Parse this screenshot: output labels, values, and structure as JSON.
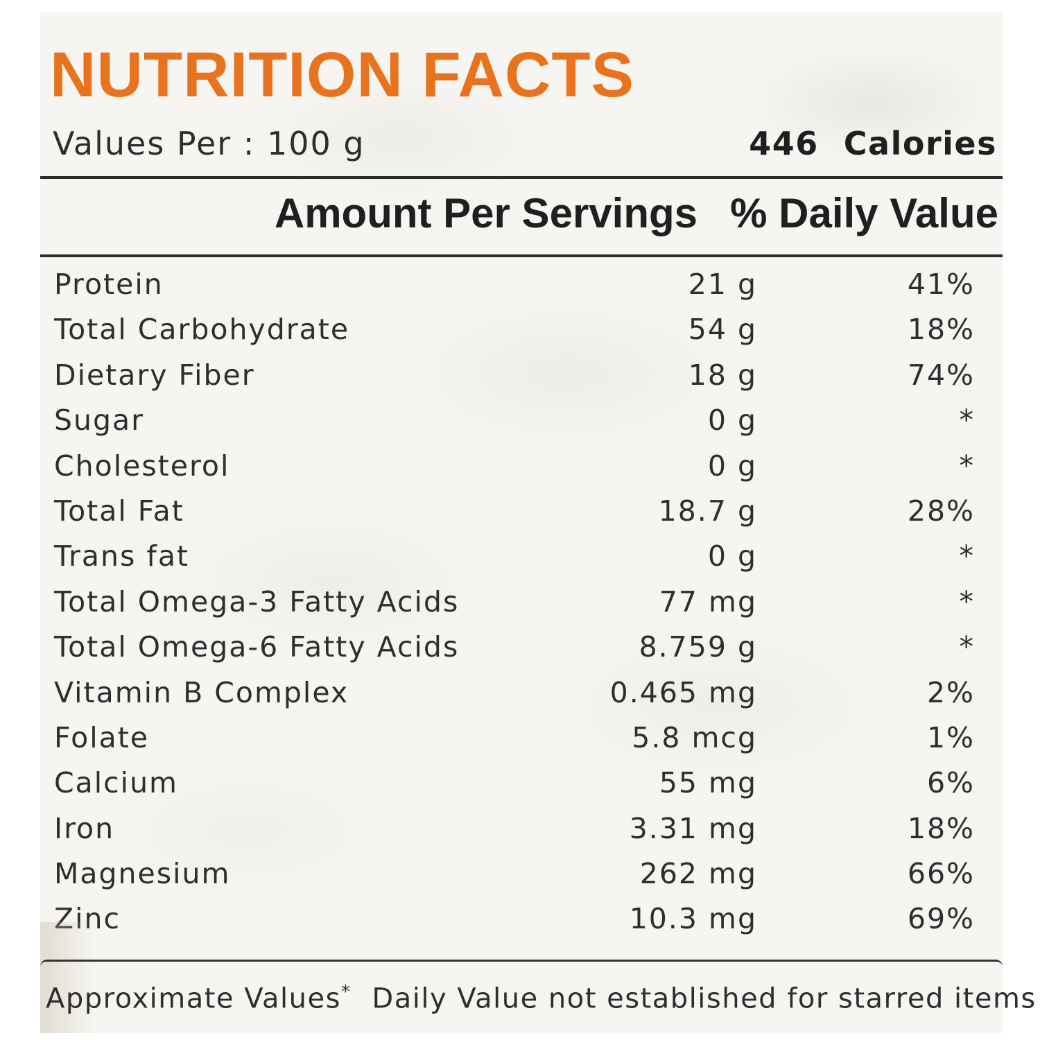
{
  "title": "NUTRITION FACTS",
  "serving": "Values Per : 100 g",
  "calories": {
    "value": "446",
    "label": "Calories"
  },
  "columns": {
    "amount": "Amount Per Servings",
    "daily_value": "% Daily Value"
  },
  "nutrients": [
    {
      "name": "Protein",
      "amount": "21 g",
      "dv": "41%"
    },
    {
      "name": "Total Carbohydrate",
      "amount": "54 g",
      "dv": "18%"
    },
    {
      "name": "Dietary Fiber",
      "amount": "18 g",
      "dv": "74%"
    },
    {
      "name": "Sugar",
      "amount": "0 g",
      "dv": "*"
    },
    {
      "name": "Cholesterol",
      "amount": "0 g",
      "dv": "*"
    },
    {
      "name": "Total Fat",
      "amount": "18.7 g",
      "dv": "28%"
    },
    {
      "name": "Trans fat",
      "amount": "0 g",
      "dv": "*"
    },
    {
      "name": "Total Omega-3 Fatty Acids",
      "amount": "77 mg",
      "dv": "*"
    },
    {
      "name": "Total Omega-6 Fatty Acids",
      "amount": "8.759 g",
      "dv": "*"
    },
    {
      "name": "Vitamin B Complex",
      "amount": "0.465 mg",
      "dv": "2%"
    },
    {
      "name": "Folate",
      "amount": "5.8 mcg",
      "dv": "1%"
    },
    {
      "name": "Calcium",
      "amount": "55 mg",
      "dv": "6%"
    },
    {
      "name": "Iron",
      "amount": "3.31 mg",
      "dv": "18%"
    },
    {
      "name": "Magnesium",
      "amount": "262 mg",
      "dv": "66%"
    },
    {
      "name": "Zinc",
      "amount": "10.3 mg",
      "dv": "69%"
    }
  ],
  "footnote": {
    "approx": "Approximate Values",
    "star": "*",
    "note": "Daily Value not established for starred items"
  },
  "colors": {
    "title": "#e8731e",
    "text": "#2b2b2b",
    "background": "#f6f5f1"
  }
}
